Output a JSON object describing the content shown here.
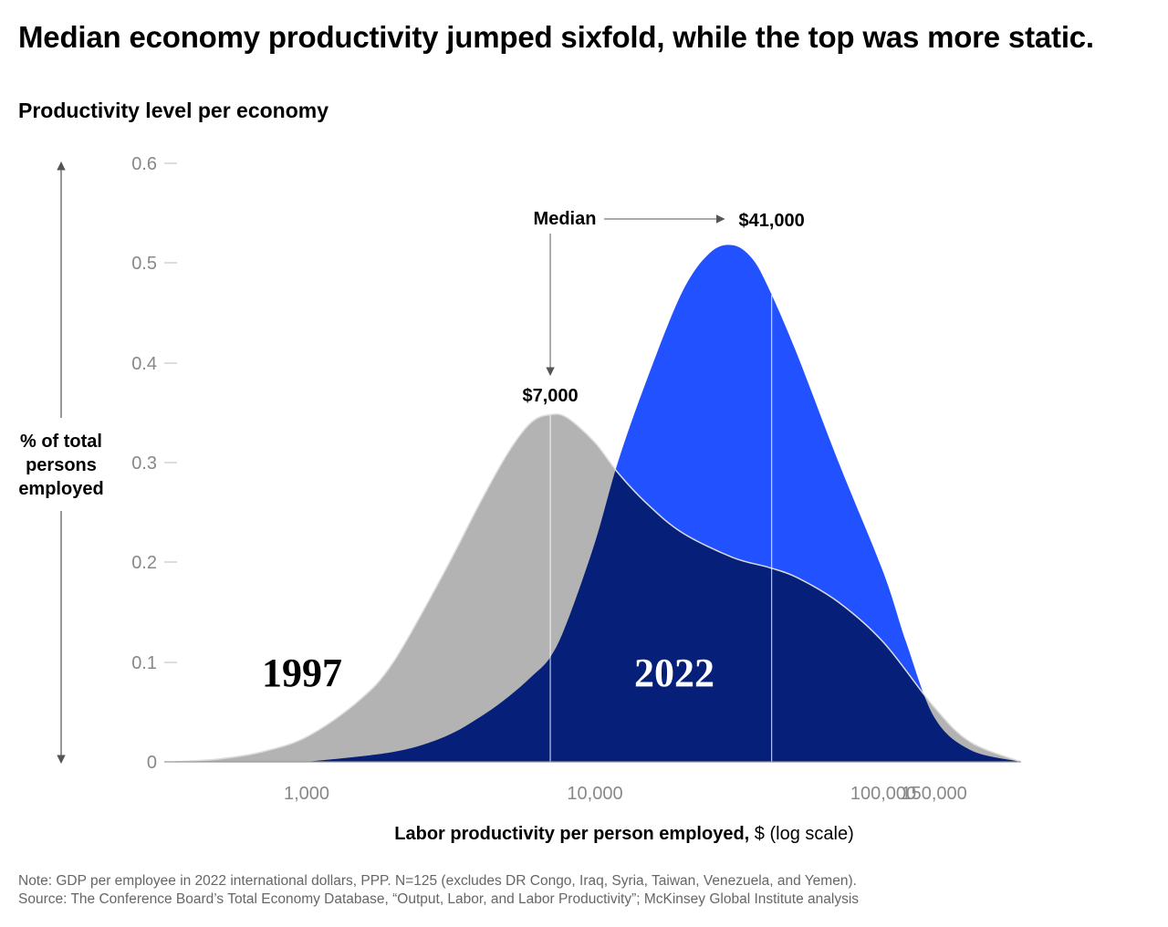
{
  "title": "Median economy productivity jumped sixfold, while the top was more static.",
  "subtitle": "Productivity level per economy",
  "note": "Note: GDP per employee in 2022 international dollars, PPP. N=125 (excludes DR Congo, Iraq, Syria, Taiwan, Venezuela, and Yemen).",
  "source": "Source: The Conference Board’s Total Economy Database, “Output, Labor, and Labor Productivity”; McKinsey Global Institute analysis",
  "chart_data": {
    "type": "area",
    "x_scale": "log",
    "xlabel_bold": "Labor productivity per person employed,",
    "xlabel_rest": " $ (log scale)",
    "ylabel_lines": [
      "% of total",
      "persons",
      "employed"
    ],
    "ylim": [
      0,
      0.6
    ],
    "y_ticks": [
      0,
      0.1,
      0.2,
      0.3,
      0.4,
      0.5,
      0.6
    ],
    "y_tick_labels": [
      "0",
      "0.1",
      "0.2",
      "0.3",
      "0.4",
      "0.5",
      "0.6"
    ],
    "x_ticks": [
      1000,
      10000,
      100000,
      150000
    ],
    "x_tick_labels": [
      "1,000",
      "10,000",
      "100,000",
      "150,000"
    ],
    "grid": false,
    "series": [
      {
        "name": "1997",
        "color": "#b3b3b3",
        "median": 7000,
        "median_label": "$7,000",
        "x": [
          350,
          500,
          700,
          1000,
          1500,
          2000,
          3000,
          4000,
          5000,
          6000,
          7000,
          8000,
          10000,
          12000,
          15000,
          20000,
          30000,
          40000,
          50000,
          70000,
          100000,
          150000,
          200000,
          300000
        ],
        "values": [
          0,
          0.003,
          0.01,
          0.025,
          0.06,
          0.1,
          0.19,
          0.26,
          0.31,
          0.34,
          0.348,
          0.345,
          0.32,
          0.29,
          0.26,
          0.23,
          0.205,
          0.195,
          0.185,
          0.16,
          0.12,
          0.055,
          0.02,
          0
        ]
      },
      {
        "name": "2022",
        "color": "#2251ff",
        "overlap_color": "#061f79",
        "median": 41000,
        "median_label": "$41,000",
        "x": [
          1000,
          2000,
          3000,
          4000,
          5000,
          6000,
          7000,
          8000,
          10000,
          12000,
          15000,
          20000,
          25000,
          30000,
          35000,
          40000,
          50000,
          70000,
          100000,
          120000,
          150000,
          200000,
          300000
        ],
        "values": [
          0,
          0.01,
          0.025,
          0.045,
          0.065,
          0.085,
          0.105,
          0.14,
          0.22,
          0.3,
          0.38,
          0.47,
          0.51,
          0.518,
          0.505,
          0.475,
          0.41,
          0.3,
          0.19,
          0.12,
          0.045,
          0.012,
          0
        ]
      }
    ],
    "annotation": {
      "text": "Median"
    }
  }
}
